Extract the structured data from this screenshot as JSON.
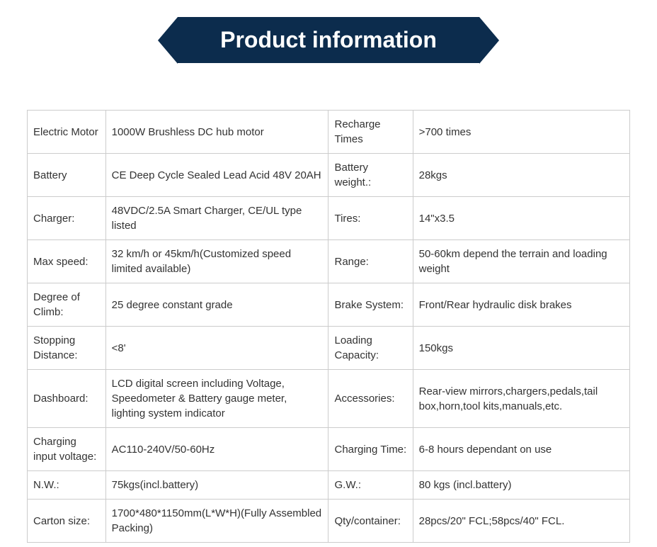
{
  "banner": {
    "title": "Product information",
    "background_color": "#0c2c4d",
    "text_color": "#ffffff"
  },
  "table": {
    "border_color": "#cccccc",
    "text_color": "#333333",
    "font_size": 15,
    "rows": [
      {
        "label1": "Electric Motor",
        "value1": "1000W Brushless DC hub motor",
        "label2": "Recharge Times",
        "value2": ">700 times"
      },
      {
        "label1": "Battery",
        "value1": "CE Deep Cycle Sealed Lead Acid 48V 20AH",
        "label2": "Battery weight.:",
        "value2": "28kgs"
      },
      {
        "label1": "Charger:",
        "value1": "48VDC/2.5A Smart Charger, CE/UL type listed",
        "label2": "Tires:",
        "value2": "14\"x3.5"
      },
      {
        "label1": "Max speed:",
        "value1": "32 km/h or 45km/h(Customized speed limited available)",
        "label2": "Range:",
        "value2": "50-60km depend the terrain and loading weight"
      },
      {
        "label1": "Degree of Climb:",
        "value1": "25 degree constant grade",
        "label2": "Brake System:",
        "value2": "Front/Rear hydraulic disk brakes"
      },
      {
        "label1": "Stopping Distance:",
        "value1": "<8'",
        "label2": "Loading Capacity:",
        "value2": "150kgs"
      },
      {
        "label1": "Dashboard:",
        "value1": "LCD digital screen including Voltage, Speedometer & Battery gauge meter, lighting system indicator",
        "label2": "Accessories:",
        "value2": "Rear-view mirrors,chargers,pedals,tail box,horn,tool kits,manuals,etc."
      },
      {
        "label1": "Charging input voltage:",
        "value1": "AC110-240V/50-60Hz",
        "label2": "Charging Time:",
        "value2": "6-8 hours dependant on use"
      },
      {
        "label1": "N.W.:",
        "value1": "75kgs(incl.battery)",
        "label2": "G.W.:",
        "value2": "80 kgs (incl.battery)"
      },
      {
        "label1": "Carton size:",
        "value1": "1700*480*1150mm(L*W*H)(Fully Assembled Packing)",
        "label2": "Qty/container:",
        "value2": "28pcs/20\" FCL;58pcs/40\" FCL."
      }
    ]
  }
}
